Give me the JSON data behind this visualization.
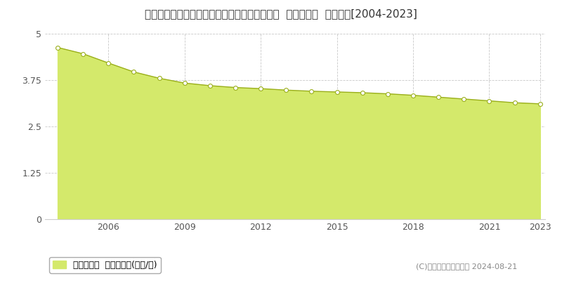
{
  "title": "宮崎県児湯郡西米良村大字村所字鶴４３番１外  基準地価格  地価推移[2004-2023]",
  "years": [
    2004,
    2005,
    2006,
    2007,
    2008,
    2009,
    2010,
    2011,
    2012,
    2013,
    2014,
    2015,
    2016,
    2017,
    2018,
    2019,
    2020,
    2021,
    2022,
    2023
  ],
  "values": [
    4.63,
    4.46,
    4.21,
    3.97,
    3.8,
    3.67,
    3.6,
    3.55,
    3.52,
    3.48,
    3.45,
    3.43,
    3.41,
    3.38,
    3.34,
    3.29,
    3.24,
    3.19,
    3.14,
    3.11
  ],
  "ylim": [
    0,
    5
  ],
  "yticks": [
    0,
    1.25,
    2.5,
    3.75,
    5
  ],
  "ytick_labels": [
    "0",
    "1.25",
    "2.5",
    "3.75",
    "5"
  ],
  "xticks": [
    2006,
    2009,
    2012,
    2015,
    2018,
    2021,
    2023
  ],
  "fill_color": "#d4e96b",
  "line_color": "#9aaf1a",
  "marker_facecolor": "#ffffff",
  "marker_edgecolor": "#9aaf1a",
  "bg_color": "#ffffff",
  "plot_bg_color": "#ffffff",
  "grid_color": "#bbbbbb",
  "legend_label": "基準地価格  平均坪単価(万円/坪)",
  "copyright": "(C)土地価格ドットコム 2024-08-21",
  "title_fontsize": 11,
  "axis_fontsize": 9,
  "legend_fontsize": 9,
  "copyright_fontsize": 8
}
